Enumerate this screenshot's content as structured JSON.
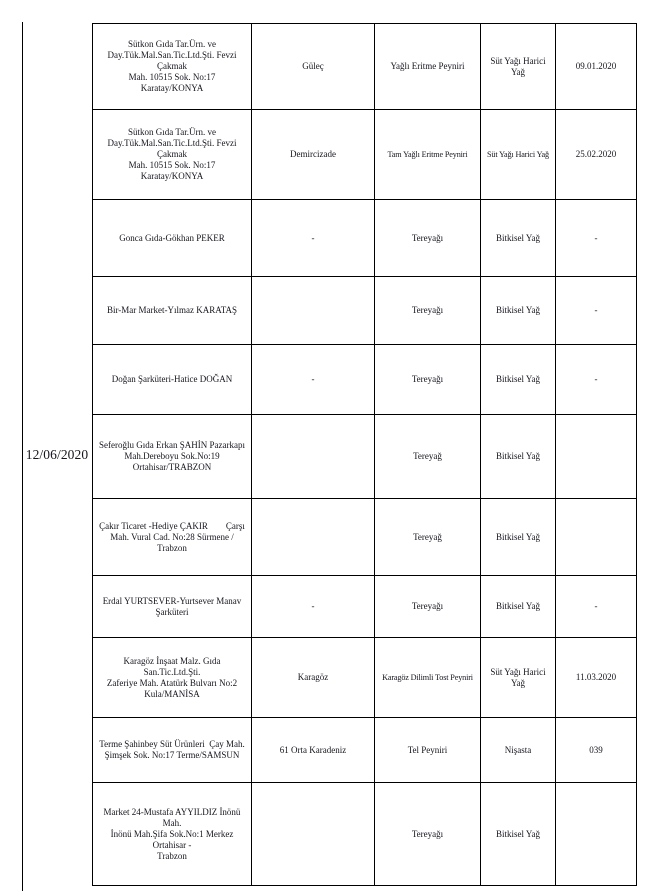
{
  "inspection_date": "12/06/2020",
  "rows": [
    {
      "company": "Sütkon Gıda Tar.Ürn. ve\nDay.Tük.Mal.San.Tic.Ltd.Şti. Fevzi Çakmak\nMah. 10515 Sok. No:17 Karatay/KONYA",
      "brand": "Güleç",
      "product": "Yağlı Eritme Peyniri",
      "ingredient": "Süt Yağı Harici Yağ",
      "date": "09.01.2020"
    },
    {
      "company": "Sütkon Gıda Tar.Ürn. ve\nDay.Tük.Mal.San.Tic.Ltd.Şti. Fevzi Çakmak\nMah. 10515 Sok. No:17 Karatay/KONYA",
      "brand": "Demircizade",
      "product": "Tam Yağlı Eritme Peyniri",
      "ingredient": "Süt Yağı Harici Yağ",
      "date": "25.02.2020"
    },
    {
      "company": "Gonca Gıda-Gökhan PEKER",
      "brand": "-",
      "product": "Tereyağı",
      "ingredient": "Bitkisel Yağ",
      "date": "-"
    },
    {
      "company": "Bir-Mar Market-Yılmaz KARATAŞ",
      "brand": "",
      "product": "Tereyağı",
      "ingredient": "Bitkisel Yağ",
      "date": "-"
    },
    {
      "company": "Doğan Şarküteri-Hatice DOĞAN",
      "brand": "-",
      "product": "Tereyağı",
      "ingredient": "Bitkisel Yağ",
      "date": "-"
    },
    {
      "company": "Seferoğlu Gıda Erkan ŞAHİN Pazarkapı\nMah.Dereboyu Sok.No:19\nOrtahisar/TRABZON",
      "brand": "",
      "product": "Tereyağ",
      "ingredient": "Bitkisel Yağ",
      "date": ""
    },
    {
      "company": "Çakır Ticaret -Hediye ÇAKIR        Çarşı\nMah. Vural Cad. No:28 Sürmene / Trabzon",
      "brand": "",
      "product": "Tereyağ",
      "ingredient": "Bitkisel Yağ",
      "date": ""
    },
    {
      "company": "Erdal YURTSEVER-Yurtsever Manav\nŞarküteri",
      "brand": "-",
      "product": "Tereyağı",
      "ingredient": "Bitkisel Yağ",
      "date": "-"
    },
    {
      "company": "Karagöz İnşaat Malz. Gıda San.Tic.Ltd.Şti.\nZaferiye Mah. Atatürk Bulvarı No:2\nKula/MANİSA",
      "brand": "Karagöz",
      "product": "Karagöz Dilimli Tost Peyniri",
      "ingredient": "Süt Yağı Harici\nYağ",
      "date": "11.03.2020"
    },
    {
      "company": "Terme Şahinbey Süt Ürünleri  Çay Mah.\nŞimşek Sok. No:17 Terme/SAMSUN",
      "brand": "61 Orta Karadeniz",
      "product": "Tel Peyniri",
      "ingredient": "Nişasta",
      "date": "039"
    },
    {
      "company": "Market 24-Mustafa AYYILDIZ İnönü Mah.\nİnönü Mah.Şifa Sok.No:1 Merkez Ortahisar -\nTrabzon",
      "brand": "",
      "product": "Tereyağı",
      "ingredient": "Bitkisel Yağ",
      "date": ""
    }
  ]
}
